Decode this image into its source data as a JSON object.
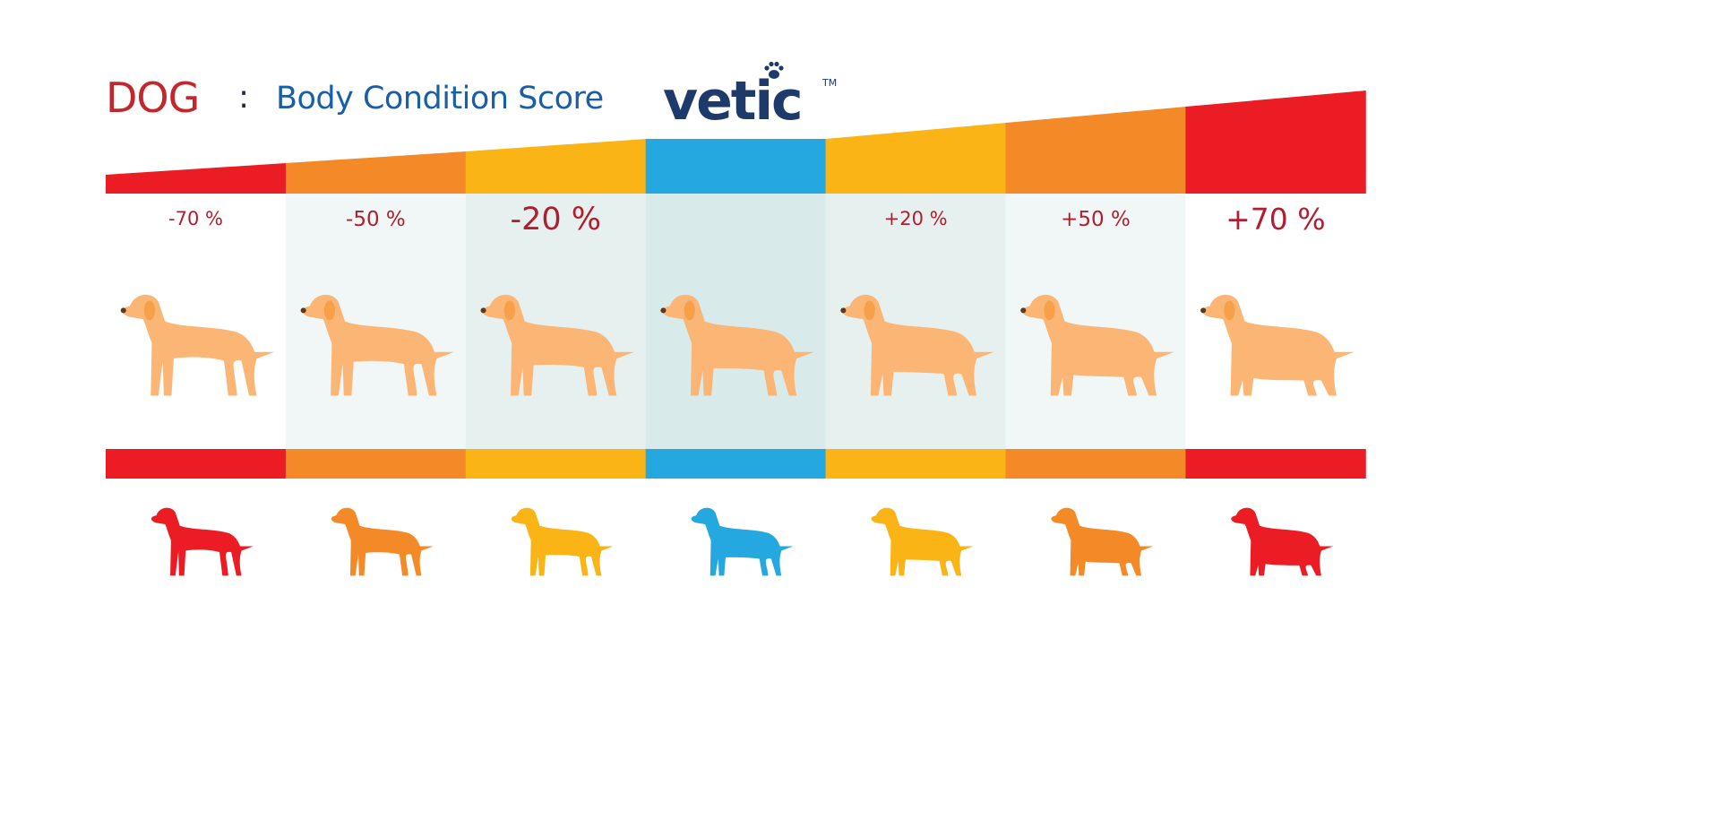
{
  "header": {
    "animal": "DOG",
    "separator": ":",
    "subtitle": "Body Condition Score",
    "logo": "vetic",
    "logo_tm": "TM"
  },
  "columns": [
    {
      "label": "-70 %",
      "color": "#ec1c24",
      "shade": "#ffffff",
      "build": "emaciated"
    },
    {
      "label": "-50 %",
      "color": "#f48a27",
      "shade": "#f1f7f7",
      "build": "very thin"
    },
    {
      "label": "-20 %",
      "color": "#fbb416",
      "shade": "#e6f0ef",
      "build": "thin"
    },
    {
      "label": "",
      "color": "#24a8df",
      "shade": "#d8eaea",
      "build": "ideal"
    },
    {
      "label": "+20 %",
      "color": "#fbb416",
      "shade": "#e6f0ef",
      "build": "overweight"
    },
    {
      "label": "+50 %",
      "color": "#f48a27",
      "shade": "#f1f7f7",
      "build": "heavy"
    },
    {
      "label": "+70 %",
      "color": "#ec1c24",
      "shade": "#ffffff",
      "build": "obese"
    }
  ],
  "colors": {
    "dog_body": "#fbb574",
    "dog_shadow": "#e1a263",
    "dog_ear": "#f6a04a",
    "label": "#b01e2f"
  }
}
